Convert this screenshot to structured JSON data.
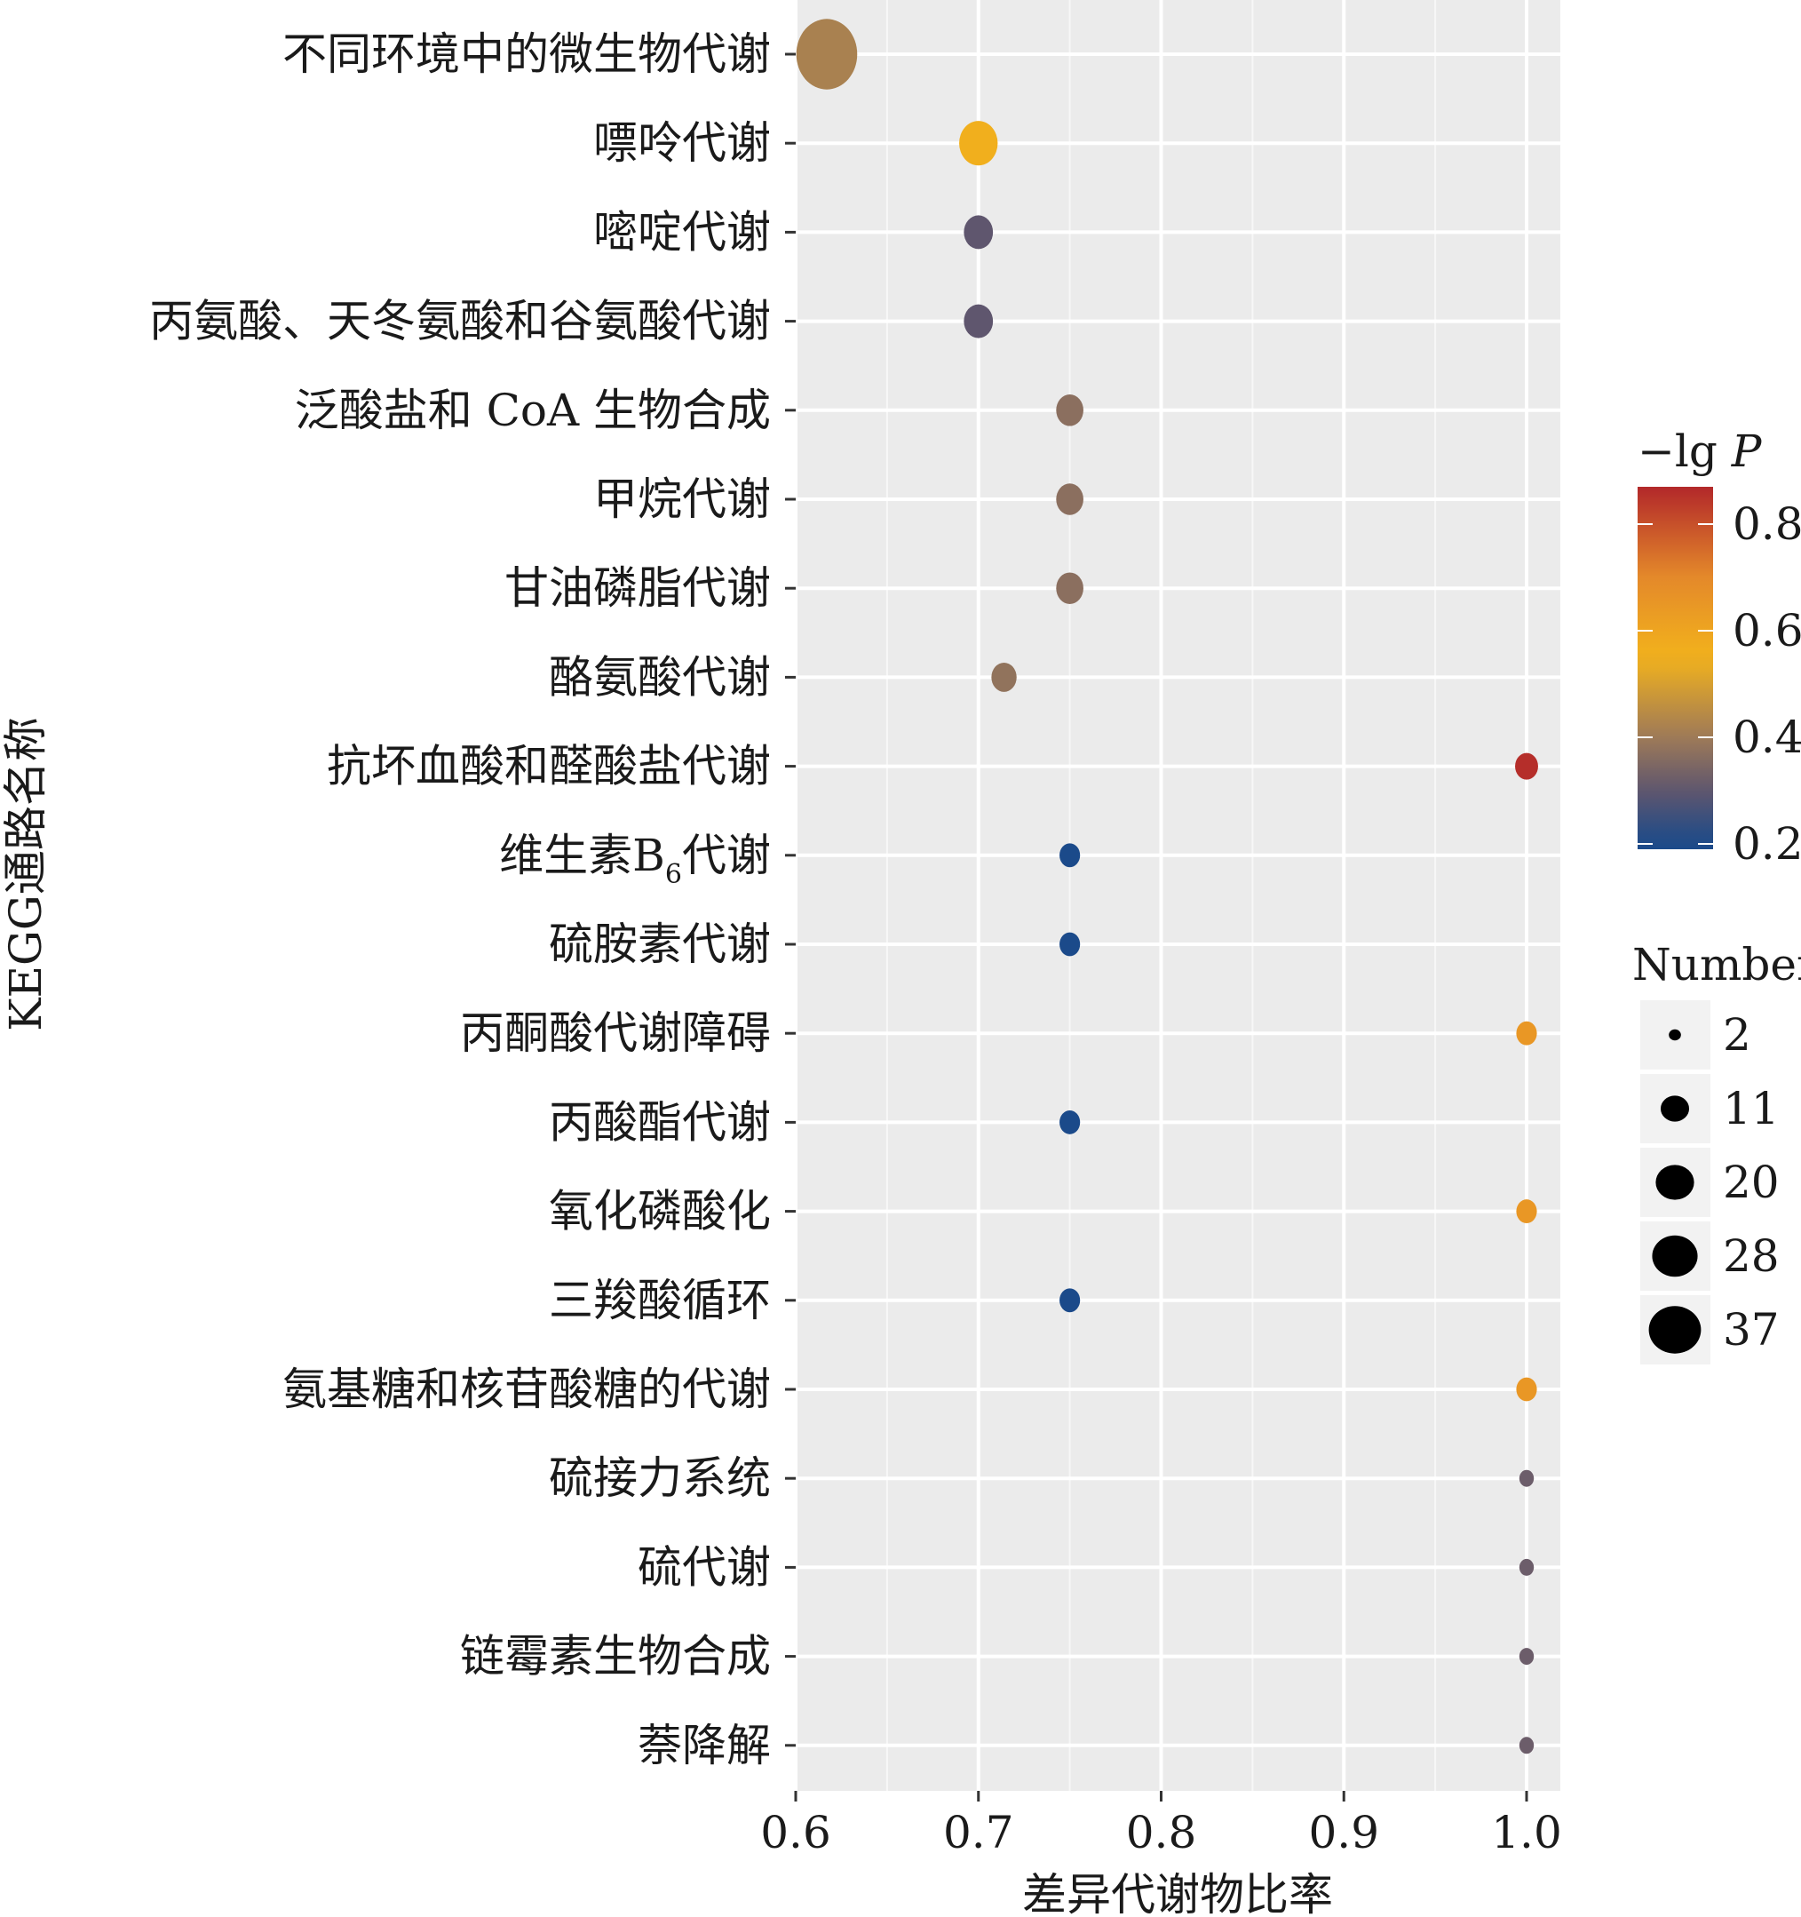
{
  "chart_data": {
    "type": "scatter",
    "subtype": "bubble",
    "xlabel": "差异代谢物比率",
    "ylabel": "KEGG通路名称",
    "xlim": [
      0.6,
      1.02
    ],
    "xticks": [
      0.6,
      0.7,
      0.8,
      0.9,
      1.0
    ],
    "xtick_labels": [
      "0.6",
      "0.7",
      "0.8",
      "0.9",
      "1.0"
    ],
    "grid": true,
    "color_legend": {
      "title_main": "−lg ",
      "title_italic": "P",
      "range": [
        0.19,
        0.87
      ],
      "ticks": [
        0.8,
        0.6,
        0.4,
        0.2
      ],
      "tick_labels": [
        "0.8",
        "0.6",
        "0.4",
        "0.2"
      ],
      "position": "right"
    },
    "size_legend": {
      "title": "Number",
      "values": [
        2,
        11,
        20,
        28,
        37
      ],
      "labels": [
        "2",
        "11",
        "20",
        "28",
        "37"
      ],
      "position": "right"
    },
    "colors": {
      "0.2": "#1b4a8a",
      "0.3": "#5f566e",
      "0.4": "#9e7a58",
      "0.55": "#f2b21c",
      "0.7": "#e4892a",
      "0.87": "#b2282a"
    },
    "points": [
      {
        "label": "不同环境中的微生物代谢",
        "x": 0.617,
        "color_value": 0.42,
        "number": 35
      },
      {
        "label": "嘌呤代谢",
        "x": 0.7,
        "color_value": 0.56,
        "number": 14
      },
      {
        "label": "嘧啶代谢",
        "x": 0.7,
        "color_value": 0.3,
        "number": 8
      },
      {
        "label": "丙氨酸、天冬氨酸和谷氨酸代谢",
        "x": 0.7,
        "color_value": 0.3,
        "number": 8
      },
      {
        "label": "泛酸盐和 CoA 生物合成",
        "x": 0.75,
        "color_value": 0.37,
        "number": 7
      },
      {
        "label": "甲烷代谢",
        "x": 0.75,
        "color_value": 0.37,
        "number": 7
      },
      {
        "label": "甘油磷脂代谢",
        "x": 0.75,
        "color_value": 0.37,
        "number": 7
      },
      {
        "label": "酪氨酸代谢",
        "x": 0.714,
        "color_value": 0.38,
        "number": 6
      },
      {
        "label": "抗坏血酸和醛酸盐代谢",
        "x": 1.0,
        "color_value": 0.86,
        "number": 5
      },
      {
        "label": "维生素B",
        "label_sub": "6",
        "label_tail": "代谢",
        "x": 0.75,
        "color_value": 0.2,
        "number": 4
      },
      {
        "label": "硫胺素代谢",
        "x": 0.75,
        "color_value": 0.2,
        "number": 4
      },
      {
        "label": "丙酮酸代谢障碍",
        "x": 1.0,
        "color_value": 0.65,
        "number": 4
      },
      {
        "label": "丙酸酯代谢",
        "x": 0.75,
        "color_value": 0.2,
        "number": 4
      },
      {
        "label": "氧化磷酸化",
        "x": 1.0,
        "color_value": 0.65,
        "number": 4
      },
      {
        "label": "三羧酸循环",
        "x": 0.75,
        "color_value": 0.2,
        "number": 4
      },
      {
        "label": "氨基糖和核苷酸糖的代谢",
        "x": 1.0,
        "color_value": 0.65,
        "number": 4
      },
      {
        "label": "硫接力系统",
        "x": 1.0,
        "color_value": 0.32,
        "number": 2
      },
      {
        "label": "硫代谢",
        "x": 1.0,
        "color_value": 0.32,
        "number": 2
      },
      {
        "label": "链霉素生物合成",
        "x": 1.0,
        "color_value": 0.32,
        "number": 2
      },
      {
        "label": "萘降解",
        "x": 1.0,
        "color_value": 0.32,
        "number": 2
      }
    ]
  }
}
